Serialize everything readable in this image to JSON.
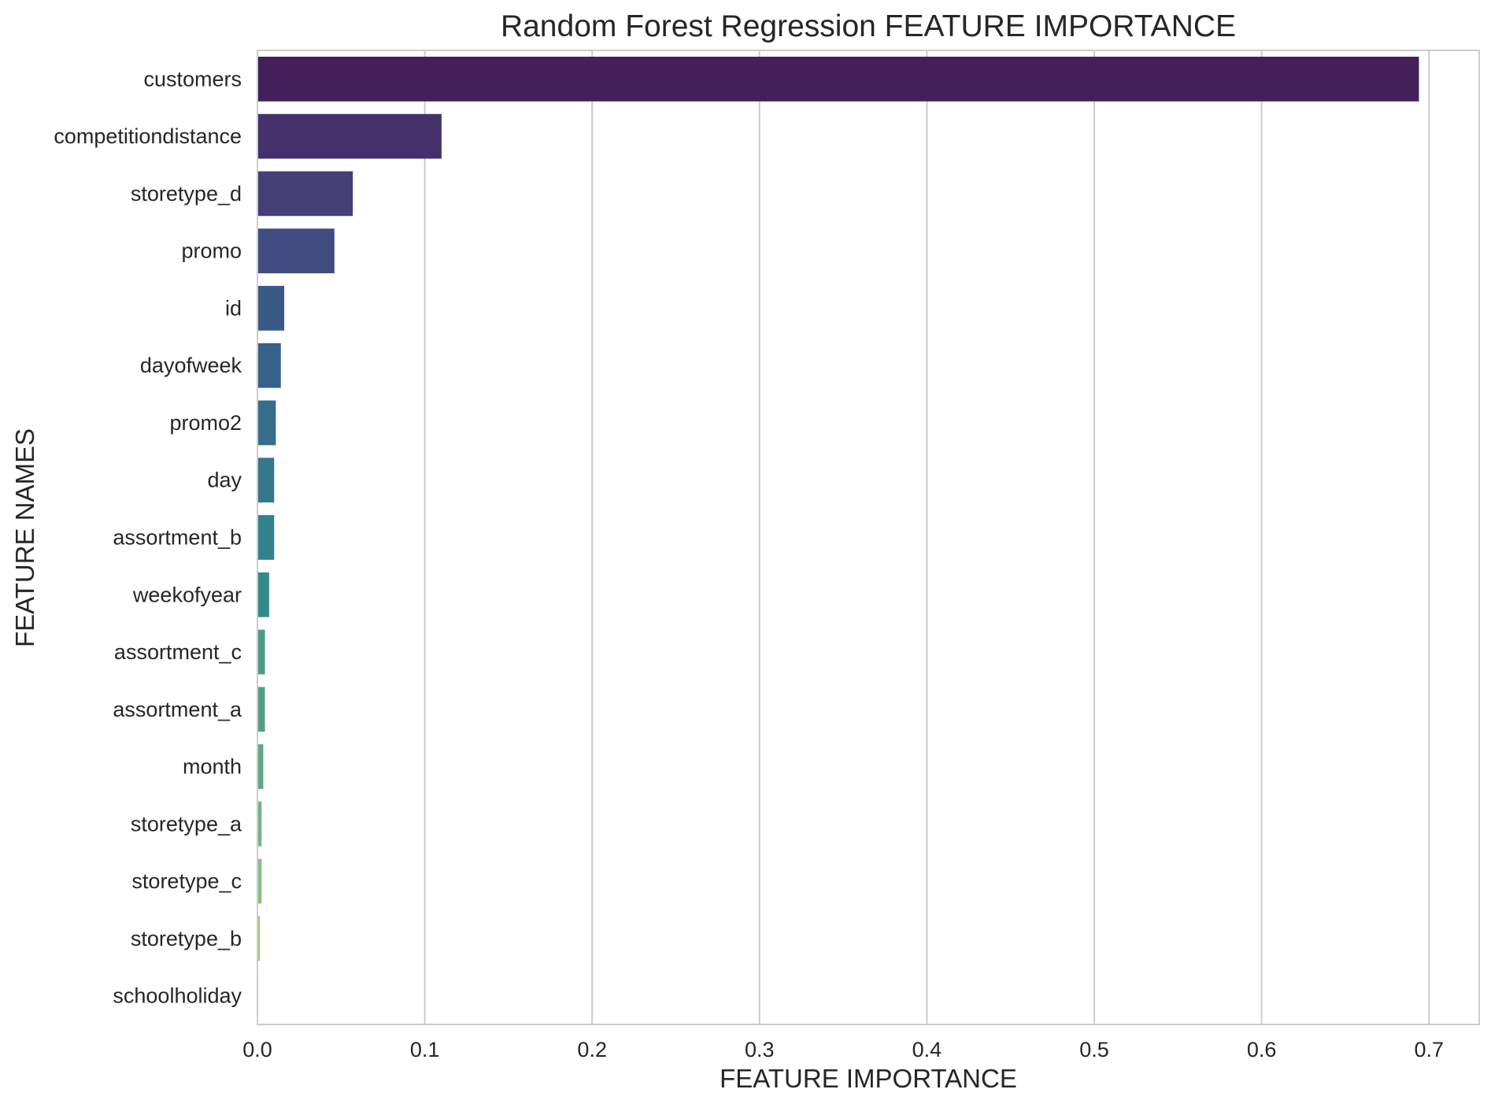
{
  "chart_data": {
    "type": "bar",
    "orientation": "horizontal",
    "title": "Random Forest Regression FEATURE IMPORTANCE",
    "xlabel": "FEATURE IMPORTANCE",
    "ylabel": "FEATURE NAMES",
    "xlim": [
      0,
      0.73
    ],
    "xticks": [
      0.0,
      0.1,
      0.2,
      0.3,
      0.4,
      0.5,
      0.6,
      0.7
    ],
    "xtick_labels": [
      "0.0",
      "0.1",
      "0.2",
      "0.3",
      "0.4",
      "0.5",
      "0.6",
      "0.7"
    ],
    "grid": "vertical",
    "palette": "viridis",
    "categories": [
      "customers",
      "competitiondistance",
      "storetype_d",
      "promo",
      "id",
      "dayofweek",
      "promo2",
      "day",
      "assortment_b",
      "weekofyear",
      "assortment_c",
      "assortment_a",
      "month",
      "storetype_a",
      "storetype_c",
      "storetype_b",
      "schoolholiday"
    ],
    "values": [
      0.694,
      0.11,
      0.057,
      0.046,
      0.016,
      0.014,
      0.011,
      0.01,
      0.01,
      0.007,
      0.0045,
      0.0045,
      0.0035,
      0.0025,
      0.0025,
      0.0015,
      0.0005
    ],
    "colors": [
      "#44205b",
      "#45306b",
      "#443f76",
      "#404c7f",
      "#3b5a85",
      "#38618a",
      "#356d8b",
      "#33788b",
      "#32818b",
      "#31898a",
      "#4d9a86",
      "#539f84",
      "#5da984",
      "#72b683",
      "#86c080",
      "#9bc97c",
      "#b1d172"
    ]
  }
}
